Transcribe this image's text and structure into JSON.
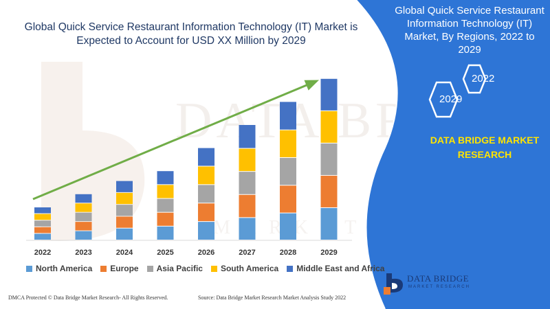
{
  "title": "Global Quick Service Restaurant Information Technology (IT) Market is Expected to Account for USD XX Million by 2029",
  "watermark": {
    "text": "DATA BRIDGE",
    "subtext": "MARKET RESEARCH"
  },
  "chart_data": {
    "type": "bar",
    "stacked": true,
    "title": "Global Quick Service Restaurant Information Technology (IT) Market is Expected to Account for USD XX Million by 2029",
    "xlabel": "",
    "ylabel": "",
    "categories": [
      "2022",
      "2023",
      "2024",
      "2025",
      "2026",
      "2027",
      "2028",
      "2029"
    ],
    "series": [
      {
        "name": "North America",
        "color": "#5b9bd5",
        "values": [
          10,
          14,
          18,
          21,
          28,
          34,
          41,
          49
        ]
      },
      {
        "name": "Europe",
        "color": "#ed7d31",
        "values": [
          10,
          14,
          18,
          21,
          28,
          35,
          42,
          49
        ]
      },
      {
        "name": "Asia Pacific",
        "color": "#a5a5a5",
        "values": [
          10,
          14,
          18,
          21,
          28,
          35,
          42,
          49
        ]
      },
      {
        "name": "South America",
        "color": "#ffc000",
        "values": [
          10,
          14,
          18,
          21,
          28,
          35,
          42,
          49
        ]
      },
      {
        "name": "Middle East and Africa",
        "color": "#4472c4",
        "values": [
          10,
          14,
          18,
          21,
          28,
          36,
          43,
          49
        ]
      }
    ],
    "ylim": [
      0,
      250
    ],
    "grid": false,
    "legend": "bottom",
    "trend_arrow": true,
    "trend_color": "#70ad47"
  },
  "right_panel": {
    "background": "#2e75d6",
    "title": "Global Quick Service Restaurant Information Technology (IT) Market, By Regions, 2022 to 2029",
    "hex_labels": [
      "2022",
      "2029"
    ],
    "brand": "DATA BRIDGE MARKET RESEARCH",
    "brand_color": "#ffe400"
  },
  "logo": {
    "name": "DATA BRIDGE",
    "sub": "MARKET RESEARCH"
  },
  "footer": {
    "left": "DMCA Protected © Data Bridge Market Research- All Rights Reserved.",
    "right": "Source: Data Bridge Market Research Market Analysis Study 2022"
  }
}
